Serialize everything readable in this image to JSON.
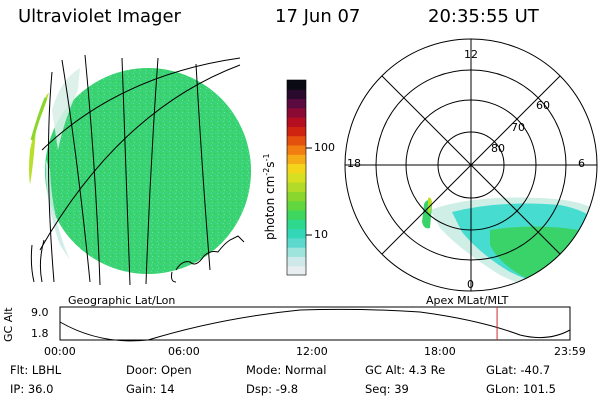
{
  "header": {
    "instrument": "Ultraviolet Imager",
    "date": "17 Jun 07",
    "time": "20:35:55 UT"
  },
  "colors": {
    "aurora_main": "#39d36a",
    "aurora_cyan": "#46dcd0",
    "aurora_pale": "#cfeee6",
    "bright_patch": "#b8e02a",
    "time_marker": "#cc2a2a"
  },
  "geo_panel": {
    "label": "Geographic Lat/Lon"
  },
  "colorbar": {
    "unit_label": "photon cm",
    "unit_sup1": "-2",
    "unit_mid": "s",
    "unit_sup2": "-1",
    "ticks": [
      "100",
      "10"
    ],
    "colors": [
      "#e8eef0",
      "#cfe8ea",
      "#9ee4dc",
      "#5cd9cc",
      "#33d6b6",
      "#2ed88c",
      "#3ed65e",
      "#62d63e",
      "#8ad52e",
      "#b2da28",
      "#d7df22",
      "#f3d61c",
      "#f6ac16",
      "#f27e12",
      "#e4500e",
      "#cf2410",
      "#b40e20",
      "#8a0a34",
      "#5a0a3e",
      "#2a0a2c",
      "#0a0a14"
    ]
  },
  "polar_panel": {
    "label": "Apex MLat/MLT",
    "mlt_labels": {
      "top": "12",
      "left": "18",
      "right": "6",
      "bottom": "0"
    },
    "lat_labels": [
      "60",
      "70",
      "80"
    ]
  },
  "orbit": {
    "axis_label": "GC Alt",
    "y_ticks": [
      "9.0",
      "1.8"
    ],
    "x_ticks": [
      "00:00",
      "06:00",
      "12:00",
      "18:00",
      "23:59"
    ],
    "current_time_fraction": 0.857
  },
  "info": {
    "filter": {
      "label": "Flt:",
      "value": "LBHL"
    },
    "ip": {
      "label": "IP:",
      "value": "36.0"
    },
    "door": {
      "label": "Door:",
      "value": "Open"
    },
    "gain": {
      "label": "Gain:",
      "value": "14"
    },
    "mode": {
      "label": "Mode:",
      "value": "Normal"
    },
    "dsp": {
      "label": "Dsp:",
      "value": "-9.8"
    },
    "gc_alt": {
      "label": "GC Alt:",
      "value": "4.3 Re"
    },
    "seq": {
      "label": "Seq:",
      "value": "39"
    },
    "glat": {
      "label": "GLat:",
      "value": "-40.7"
    },
    "glon": {
      "label": "GLon:",
      "value": "101.5"
    }
  }
}
